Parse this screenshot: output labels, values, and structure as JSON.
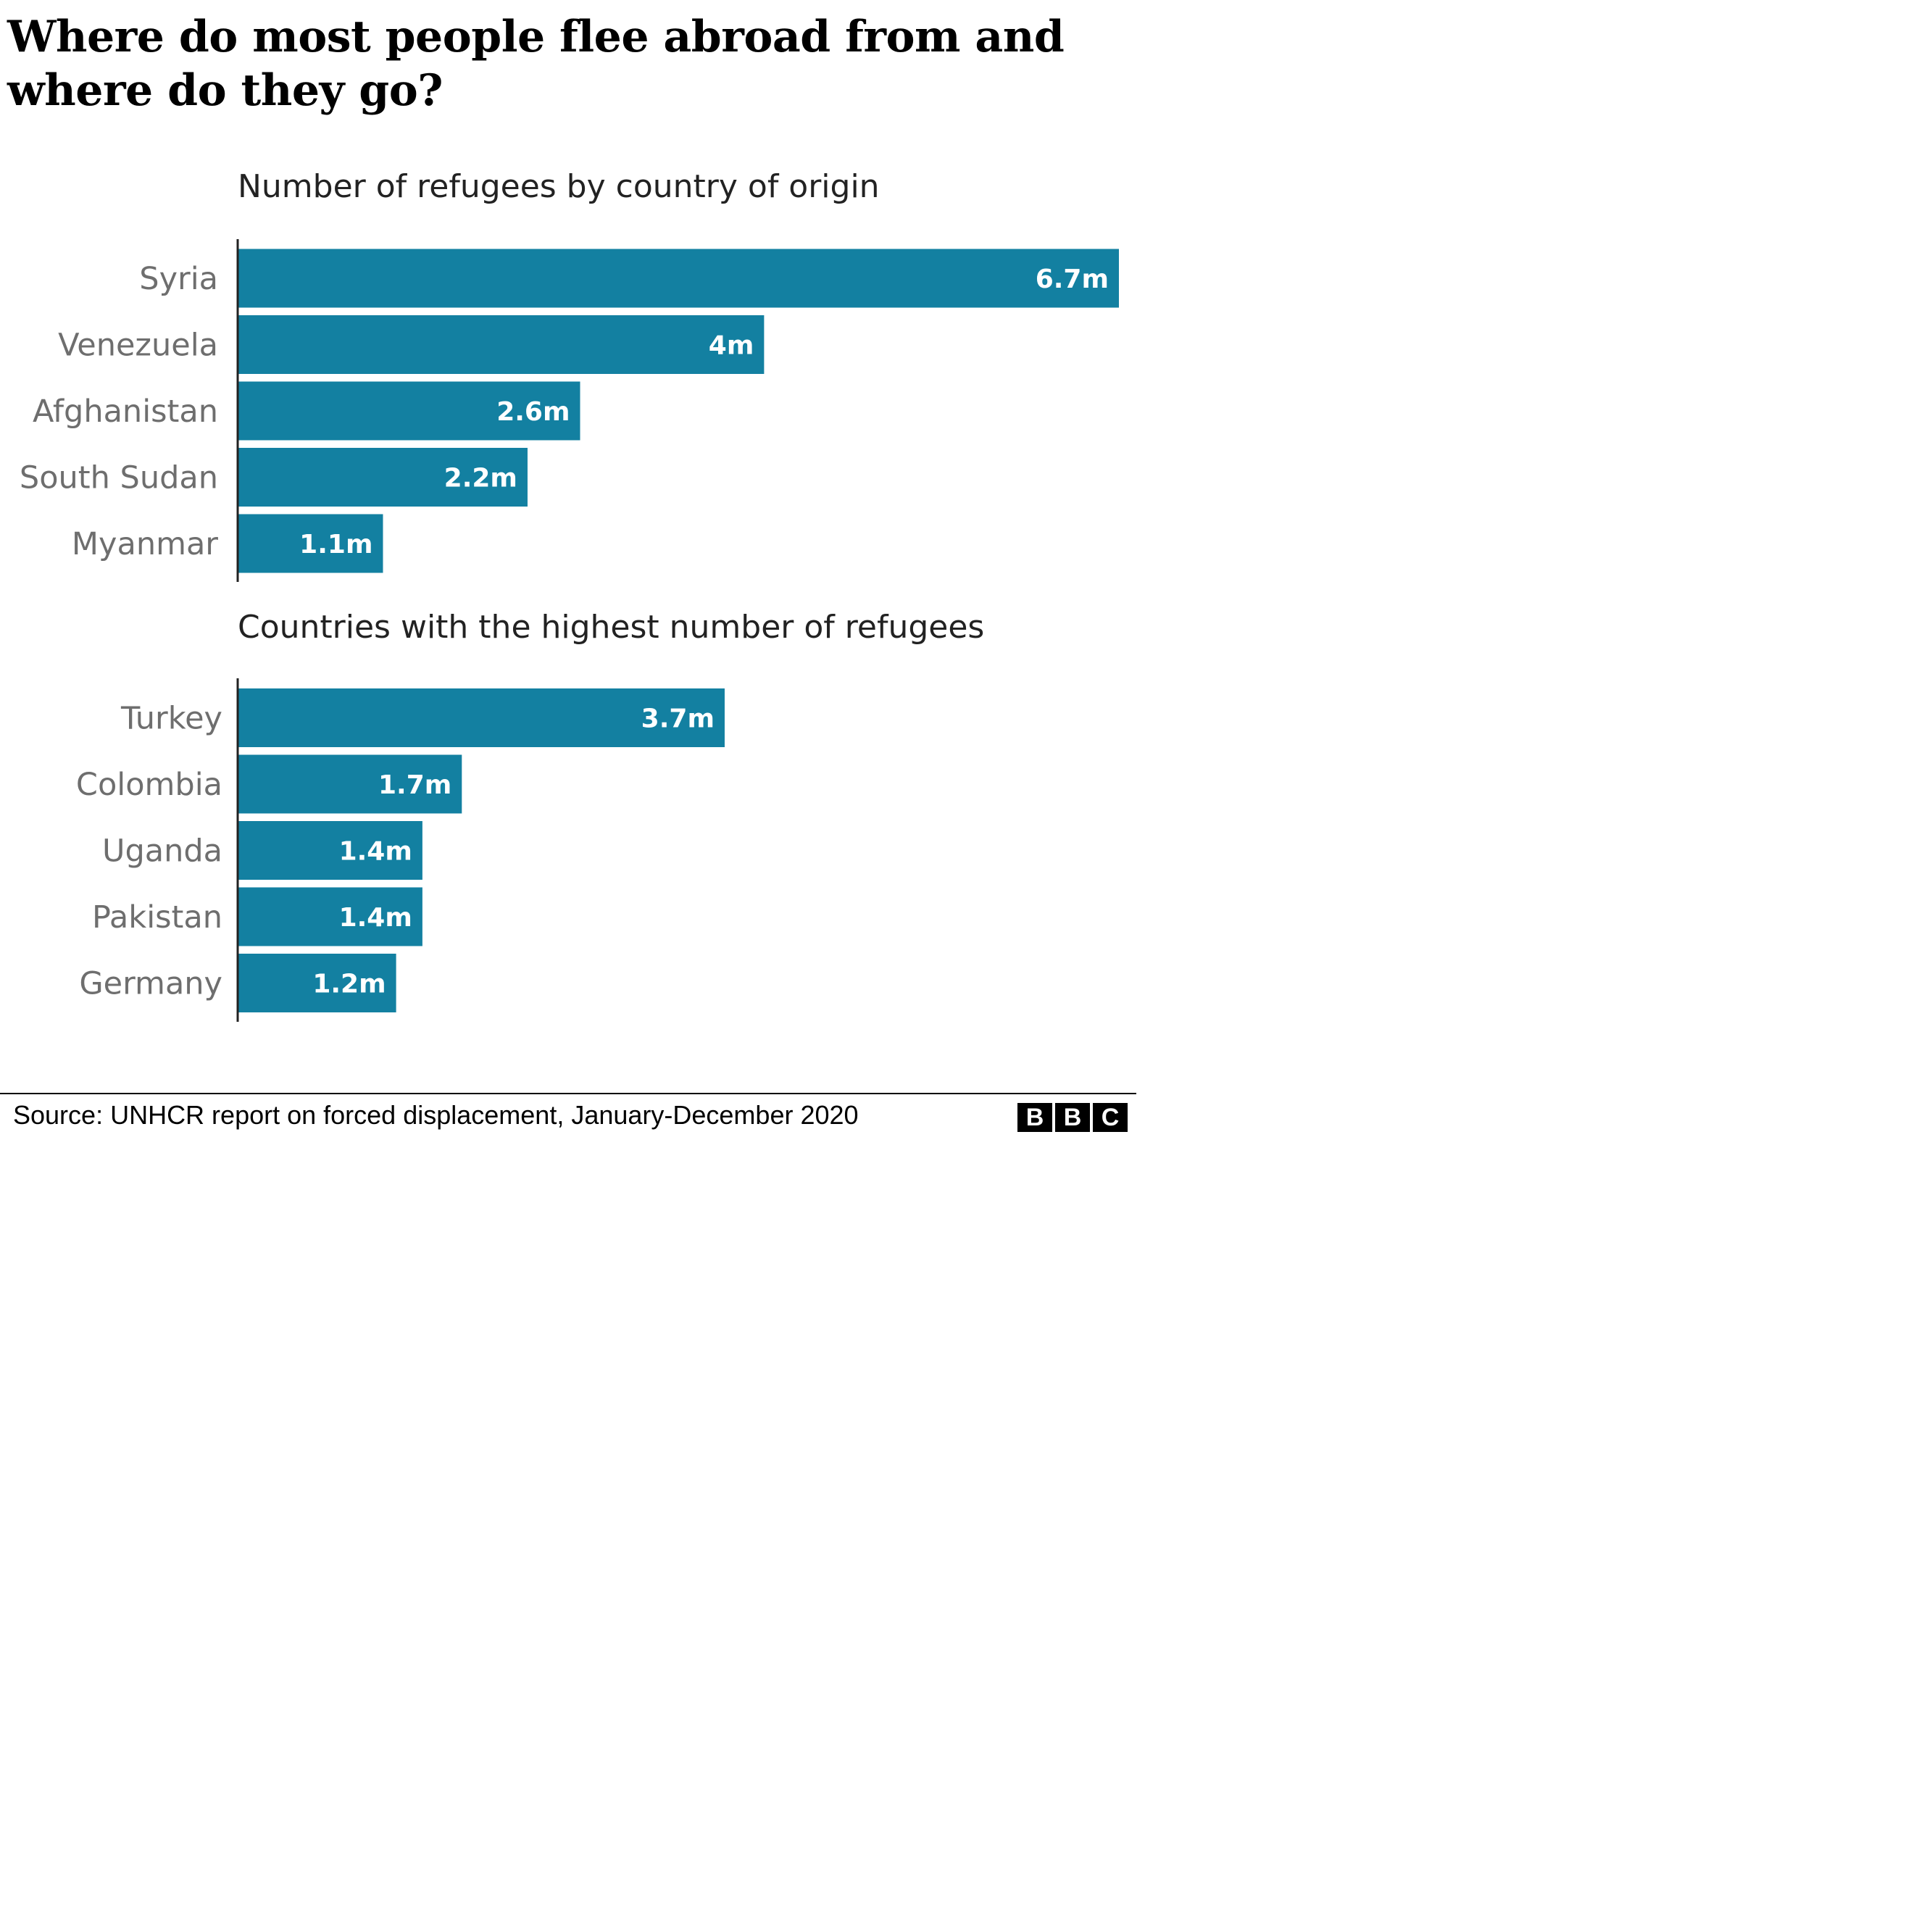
{
  "title": "Where do most people flee abroad from and where do they go?",
  "chart_data": [
    {
      "type": "bar",
      "orientation": "horizontal",
      "title": "Number of refugees by country of origin",
      "categories": [
        "Syria",
        "Venezuela",
        "Afghanistan",
        "South Sudan",
        "Myanmar"
      ],
      "values": [
        6.7,
        4.0,
        2.6,
        2.2,
        1.1
      ],
      "labels": [
        "6.7m",
        "4m",
        "2.6m",
        "2.2m",
        "1.1m"
      ],
      "unit": "millions",
      "xlim": [
        0,
        6.7
      ],
      "grid": false,
      "bar_color": "#1380a1"
    },
    {
      "type": "bar",
      "orientation": "horizontal",
      "title": "Countries with the highest number of refugees",
      "categories": [
        "Turkey",
        "Colombia",
        "Uganda",
        "Pakistan",
        "Germany"
      ],
      "values": [
        3.7,
        1.7,
        1.4,
        1.4,
        1.2
      ],
      "labels": [
        "3.7m",
        "1.7m",
        "1.4m",
        "1.4m",
        "1.2m"
      ],
      "unit": "millions",
      "xlim": [
        0,
        6.7
      ],
      "grid": false,
      "bar_color": "#1380a1"
    }
  ],
  "source": "Source: UNHCR report on forced displacement, January-December 2020",
  "logo": [
    "B",
    "B",
    "C"
  ]
}
